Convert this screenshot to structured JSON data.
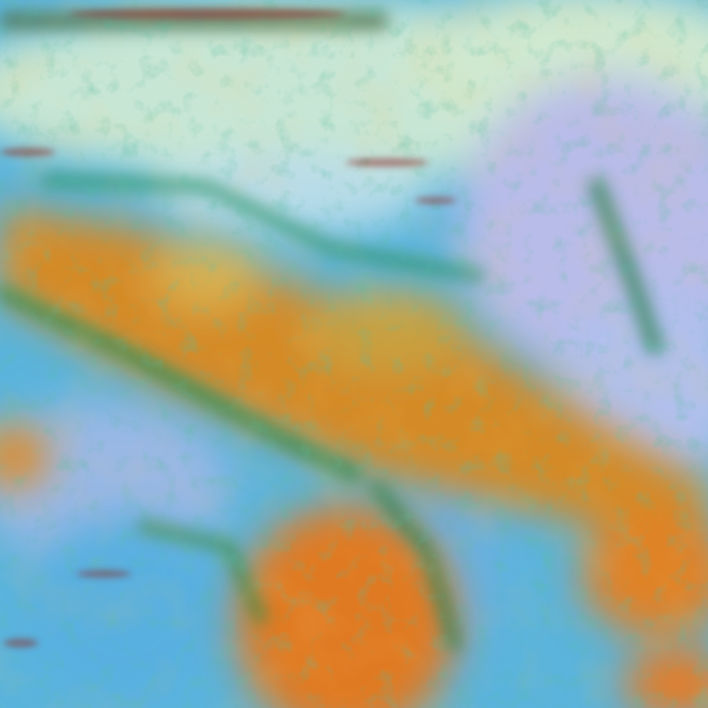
{
  "image": {
    "kind": "false-color satellite imagery",
    "colors": {
      "cloud_pale": "#c8e8d8",
      "cloud_lavender": "#b8b8e8",
      "sky_blue": "#58b8e0",
      "land_orange": "#d88a20",
      "land_deep_orange": "#e07820",
      "vegetation_green": "#2a8a50",
      "shadow_red": "#8a2020"
    }
  }
}
